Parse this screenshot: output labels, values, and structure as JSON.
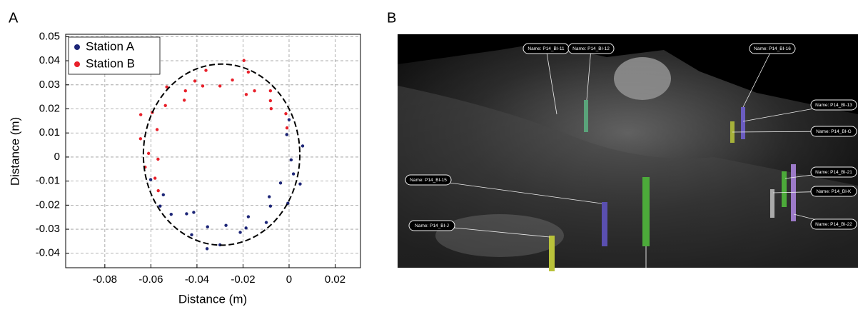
{
  "chart_data": {
    "type": "scatter",
    "panel_label": "A",
    "xlabel": "Distance (m)",
    "ylabel": "Distance (m)",
    "xlim": [
      -0.097,
      0.031
    ],
    "ylim": [
      -0.046,
      0.051
    ],
    "xticks": [
      -0.08,
      -0.06,
      -0.04,
      -0.02,
      0,
      0.02
    ],
    "yticks": [
      -0.04,
      -0.03,
      -0.02,
      -0.01,
      0,
      0.01,
      0.02,
      0.03,
      0.04,
      0.05
    ],
    "grid": true,
    "legend": "upper left",
    "series": [
      {
        "name": "Station A",
        "color": "#1c2577",
        "x": [
          -0.0601,
          -0.0546,
          -0.0512,
          -0.0445,
          -0.0423,
          -0.0354,
          -0.03,
          -0.0274,
          -0.0212,
          -0.0177,
          -0.0099,
          -0.0081,
          -0.0005,
          -0.0037,
          0.0019,
          0.0009,
          0.0059,
          -0.001,
          0.0,
          -0.0356,
          -0.0414,
          -0.0187,
          -0.0086,
          0.0048,
          -0.056
        ],
        "values": [
          -0.0094,
          -0.0157,
          -0.0238,
          -0.0236,
          -0.0323,
          -0.029,
          -0.0365,
          -0.0284,
          -0.0313,
          -0.0248,
          -0.0272,
          -0.0204,
          -0.0192,
          -0.0108,
          -0.007,
          -0.0012,
          0.0046,
          0.0093,
          0.0155,
          -0.0381,
          -0.023,
          -0.0295,
          -0.0165,
          -0.0112,
          -0.0204
        ]
      },
      {
        "name": "Station B",
        "color": "#e8202a",
        "x": [
          -0.0009,
          -0.0014,
          -0.0078,
          -0.0081,
          -0.015,
          -0.0177,
          -0.0246,
          -0.03,
          -0.0361,
          -0.0409,
          -0.045,
          -0.0531,
          -0.0537,
          -0.0594,
          -0.0573,
          -0.0645,
          -0.061,
          -0.0625,
          -0.0582,
          -0.0568,
          -0.0081,
          -0.0196,
          -0.0455,
          -0.0644,
          -0.0569,
          -0.0375,
          -0.0186
        ],
        "values": [
          0.0121,
          0.018,
          0.0201,
          0.0275,
          0.0275,
          0.0353,
          0.032,
          0.0295,
          0.036,
          0.0316,
          0.0275,
          0.0291,
          0.0214,
          0.0185,
          0.0114,
          0.0076,
          0.0015,
          -0.0042,
          -0.0088,
          -0.014,
          0.0234,
          0.0401,
          0.0236,
          0.0176,
          -0.0009,
          0.0295,
          0.026
        ]
      }
    ]
  },
  "panel_b": {
    "panel_label": "B",
    "labels": [
      "Name: P14_BI-11",
      "Name: P14_BI-12",
      "Name: P14_BI-16",
      "Name: P14_BI-13",
      "Name: P14_BI-G",
      "Name: P14_BI-21",
      "Name: P14_BI-K",
      "Name: P14_BI-22",
      "Name: P14_BI-15",
      "Name: P14_BI-J"
    ]
  }
}
